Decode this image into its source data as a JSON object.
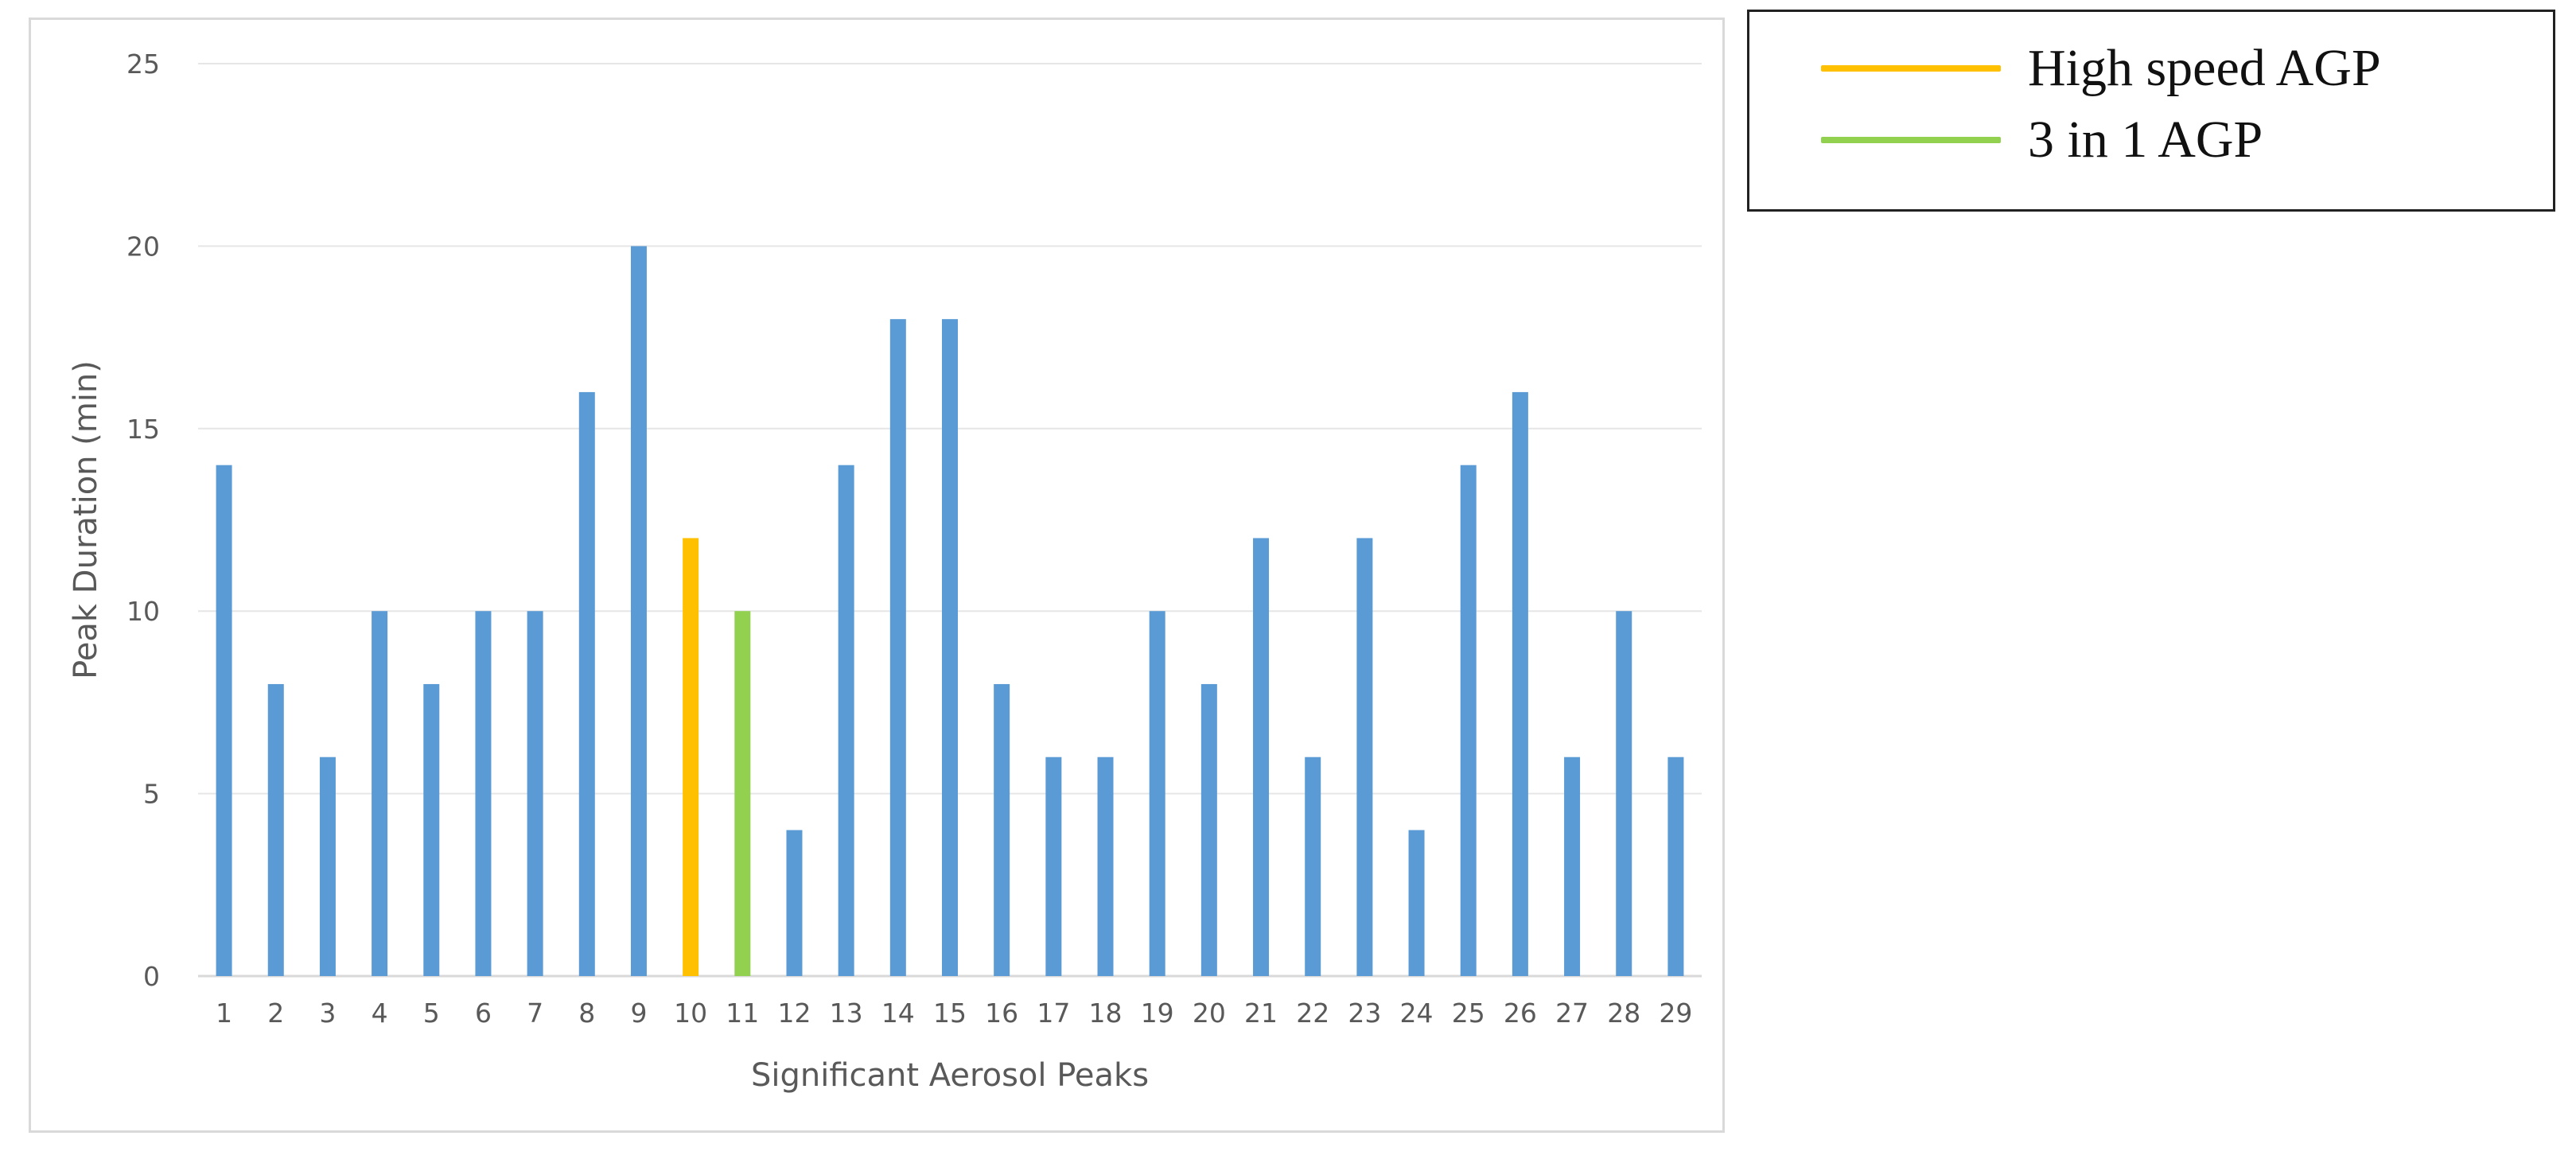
{
  "chart_data": {
    "type": "bar",
    "title": "",
    "xlabel": "Significant Aerosol Peaks",
    "ylabel": "Peak Duration (min)",
    "ylim": [
      0,
      25
    ],
    "yticks": [
      "0",
      "5",
      "10",
      "15",
      "20",
      "25"
    ],
    "categories": [
      "1",
      "2",
      "3",
      "4",
      "5",
      "6",
      "7",
      "8",
      "9",
      "10",
      "11",
      "12",
      "13",
      "14",
      "15",
      "16",
      "17",
      "18",
      "19",
      "20",
      "21",
      "22",
      "23",
      "24",
      "25",
      "26",
      "27",
      "28",
      "29"
    ],
    "values": [
      14,
      8,
      6,
      10,
      8,
      10,
      10,
      16,
      20,
      12,
      10,
      4,
      14,
      18,
      18,
      8,
      6,
      6,
      10,
      8,
      12,
      6,
      12,
      4,
      14,
      16,
      6,
      10,
      6
    ],
    "bar_colors": [
      "#5b9bd5",
      "#5b9bd5",
      "#5b9bd5",
      "#5b9bd5",
      "#5b9bd5",
      "#5b9bd5",
      "#5b9bd5",
      "#5b9bd5",
      "#5b9bd5",
      "#ffc000",
      "#92d050",
      "#5b9bd5",
      "#5b9bd5",
      "#5b9bd5",
      "#5b9bd5",
      "#5b9bd5",
      "#5b9bd5",
      "#5b9bd5",
      "#5b9bd5",
      "#5b9bd5",
      "#5b9bd5",
      "#5b9bd5",
      "#5b9bd5",
      "#5b9bd5",
      "#5b9bd5",
      "#5b9bd5",
      "#5b9bd5",
      "#5b9bd5",
      "#5b9bd5"
    ],
    "grid": true,
    "legend_placement": "outside-top-right",
    "legend": [
      {
        "label": "High speed AGP",
        "color": "#ffc000"
      },
      {
        "label": "3 in 1 AGP",
        "color": "#92d050"
      }
    ]
  }
}
